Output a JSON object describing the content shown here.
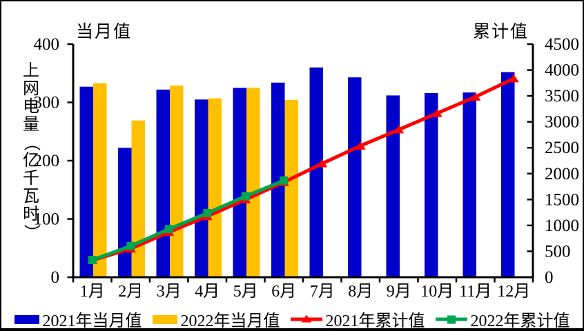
{
  "chart_data": {
    "type": "combo-bar-line",
    "categories": [
      "1月",
      "2月",
      "3月",
      "4月",
      "5月",
      "6月",
      "7月",
      "8月",
      "9月",
      "10月",
      "11月",
      "12月"
    ],
    "series": [
      {
        "name": "2021年当月值",
        "type": "bar",
        "axis": "left",
        "color": "#0000CC",
        "values": [
          327,
          222,
          322,
          305,
          325,
          334,
          360,
          343,
          312,
          316,
          317,
          352
        ]
      },
      {
        "name": "2022年当月值",
        "type": "bar",
        "axis": "left",
        "color": "#FFC000",
        "values": [
          333,
          269,
          329,
          307,
          325,
          304,
          null,
          null,
          null,
          null,
          null,
          null
        ]
      },
      {
        "name": "2021年累计值",
        "type": "line",
        "axis": "right",
        "color": "#FF0000",
        "marker": "triangle",
        "values": [
          327,
          549,
          871,
          1176,
          1501,
          1835,
          2195,
          2538,
          2850,
          3166,
          3483,
          3835
        ]
      },
      {
        "name": "2022年累计值",
        "type": "line",
        "axis": "right",
        "color": "#00A550",
        "marker": "square",
        "values": [
          333,
          602,
          931,
          1238,
          1563,
          1867,
          null,
          null,
          null,
          null,
          null,
          null
        ]
      }
    ],
    "left_axis": {
      "title": "上网电量（亿千瓦时）",
      "min": 0,
      "max": 400,
      "tick_step": 100,
      "ticks": [
        0,
        100,
        200,
        300,
        400
      ]
    },
    "right_axis": {
      "min": 0,
      "max": 4500,
      "tick_step": 500,
      "ticks": [
        0,
        500,
        1000,
        1500,
        2000,
        2500,
        3000,
        3500,
        4000,
        4500
      ]
    },
    "top_left_label": "当月值",
    "top_right_label": "累计值",
    "legend_position": "bottom",
    "grid": false,
    "axis_color": "#000000",
    "background_color": "#FFFFFF"
  }
}
